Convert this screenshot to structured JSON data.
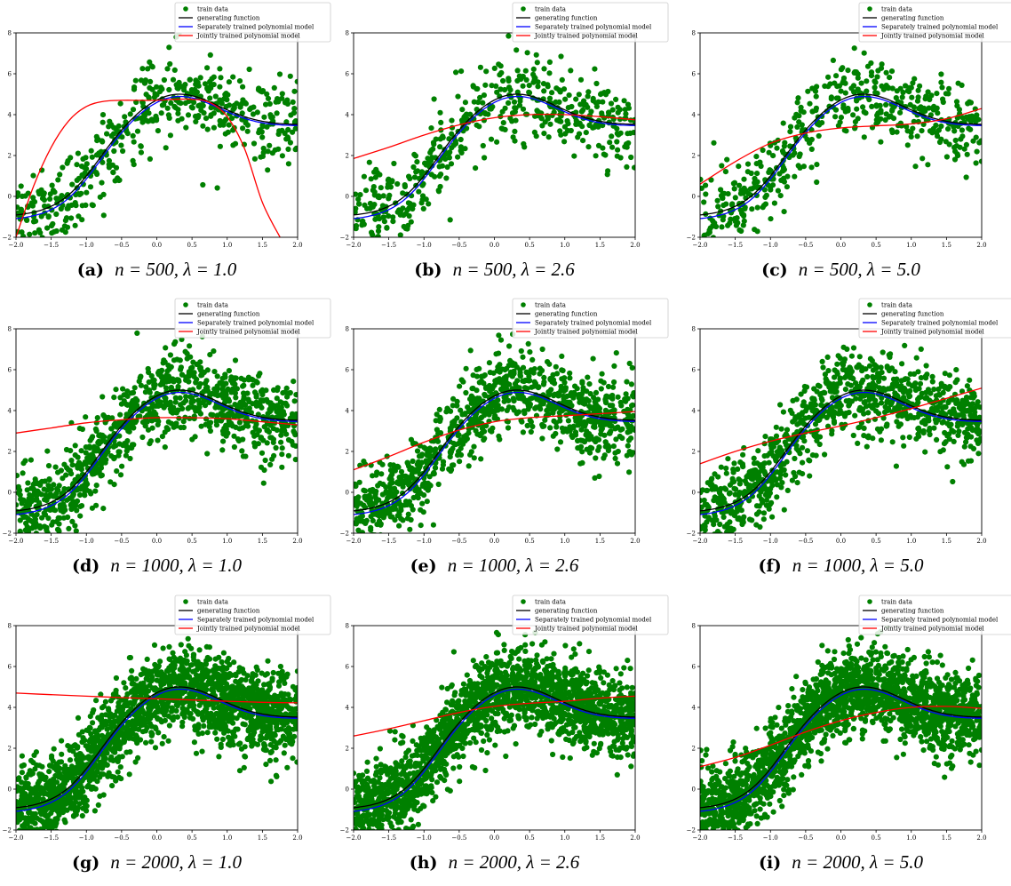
{
  "legend": {
    "entries": [
      {
        "key": "train",
        "label": "train data",
        "color": "#008000",
        "kind": "dot"
      },
      {
        "key": "gen",
        "label": "generating function",
        "color": "#000000",
        "kind": "line"
      },
      {
        "key": "sep",
        "label": "Separately trained polynomial model",
        "color": "#0000ff",
        "kind": "line"
      },
      {
        "key": "joint",
        "label": "Jointly trained polynomial model",
        "color": "#ff0000",
        "kind": "line"
      }
    ],
    "placement": "top-right"
  },
  "axes": {
    "xlim": [
      -2.0,
      2.0
    ],
    "ylim": [
      -2,
      8
    ],
    "xticks": [
      "−2.0",
      "−1.5",
      "−1.0",
      "−0.5",
      "0.0",
      "0.5",
      "1.0",
      "1.5",
      "2.0"
    ],
    "yticks": [
      "−2",
      "0",
      "2",
      "4",
      "6",
      "8"
    ],
    "grid": false
  },
  "chart_data": [
    {
      "type": "scatter",
      "caption_label": "(a)",
      "caption_math": "n = 500, λ = 1.0",
      "n": 500,
      "lambda": 1.0,
      "series": [
        {
          "key": "train",
          "approx_points": 500
        },
        {
          "key": "gen"
        },
        {
          "key": "sep"
        },
        {
          "key": "joint",
          "x": [
            -2.0,
            -1.75,
            -1.5,
            -1.25,
            -1.0,
            -0.75,
            -0.5,
            -0.25,
            0.0,
            0.25,
            0.5,
            0.75,
            1.0,
            1.25,
            1.5,
            1.75
          ],
          "y": [
            -2.0,
            0.5,
            2.4,
            3.7,
            4.4,
            4.65,
            4.7,
            4.7,
            4.7,
            4.75,
            4.75,
            4.6,
            3.9,
            2.3,
            -0.3,
            -2.0
          ]
        }
      ]
    },
    {
      "type": "scatter",
      "caption_label": "(b)",
      "caption_math": "n = 500, λ = 2.6",
      "n": 500,
      "lambda": 2.6,
      "series": [
        {
          "key": "train",
          "approx_points": 500
        },
        {
          "key": "gen"
        },
        {
          "key": "sep"
        },
        {
          "key": "joint",
          "x": [
            -2.0,
            -1.5,
            -1.0,
            -0.5,
            0.0,
            0.5,
            1.0,
            1.5,
            2.0
          ],
          "y": [
            1.85,
            2.4,
            3.0,
            3.5,
            3.85,
            4.0,
            4.0,
            3.9,
            3.75
          ]
        }
      ]
    },
    {
      "type": "scatter",
      "caption_label": "(c)",
      "caption_math": "n = 500, λ = 5.0",
      "n": 500,
      "lambda": 5.0,
      "series": [
        {
          "key": "train",
          "approx_points": 500
        },
        {
          "key": "gen"
        },
        {
          "key": "sep"
        },
        {
          "key": "joint",
          "x": [
            -2.0,
            -1.5,
            -1.0,
            -0.5,
            0.0,
            0.5,
            1.0,
            1.5,
            2.0
          ],
          "y": [
            0.6,
            1.7,
            2.6,
            3.1,
            3.35,
            3.45,
            3.55,
            3.8,
            4.3
          ]
        }
      ]
    },
    {
      "type": "scatter",
      "caption_label": "(d)",
      "caption_math": "n = 1000, λ = 1.0",
      "n": 1000,
      "lambda": 1.0,
      "series": [
        {
          "key": "train",
          "approx_points": 1000
        },
        {
          "key": "gen"
        },
        {
          "key": "sep"
        },
        {
          "key": "joint",
          "x": [
            -2.0,
            -1.5,
            -1.0,
            -0.5,
            0.0,
            0.5,
            1.0,
            1.5,
            2.0
          ],
          "y": [
            2.9,
            3.15,
            3.4,
            3.55,
            3.65,
            3.65,
            3.6,
            3.45,
            3.3
          ]
        }
      ]
    },
    {
      "type": "scatter",
      "caption_label": "(e)",
      "caption_math": "n = 1000, λ = 2.6",
      "n": 1000,
      "lambda": 2.6,
      "series": [
        {
          "key": "train",
          "approx_points": 1000
        },
        {
          "key": "gen"
        },
        {
          "key": "sep"
        },
        {
          "key": "joint",
          "x": [
            -2.0,
            -1.5,
            -1.0,
            -0.5,
            0.0,
            0.5,
            1.0,
            1.5,
            2.0
          ],
          "y": [
            1.1,
            1.75,
            2.45,
            3.05,
            3.45,
            3.65,
            3.75,
            3.85,
            3.95
          ]
        }
      ]
    },
    {
      "type": "scatter",
      "caption_label": "(f)",
      "caption_math": "n = 1000, λ = 5.0",
      "n": 1000,
      "lambda": 5.0,
      "series": [
        {
          "key": "train",
          "approx_points": 1000
        },
        {
          "key": "gen"
        },
        {
          "key": "sep"
        },
        {
          "key": "joint",
          "x": [
            -2.0,
            -1.5,
            -1.0,
            -0.5,
            0.0,
            0.5,
            1.0,
            1.5,
            2.0
          ],
          "y": [
            1.4,
            2.0,
            2.5,
            2.9,
            3.25,
            3.65,
            4.1,
            4.6,
            5.1
          ]
        }
      ]
    },
    {
      "type": "scatter",
      "caption_label": "(g)",
      "caption_math": "n = 2000, λ = 1.0",
      "n": 2000,
      "lambda": 1.0,
      "series": [
        {
          "key": "train",
          "approx_points": 2000
        },
        {
          "key": "gen"
        },
        {
          "key": "sep"
        },
        {
          "key": "joint",
          "x": [
            -2.0,
            -1.5,
            -1.0,
            -0.5,
            0.0,
            0.5,
            1.0,
            1.5,
            2.0
          ],
          "y": [
            4.7,
            4.62,
            4.55,
            4.48,
            4.42,
            4.36,
            4.3,
            4.25,
            4.22
          ]
        }
      ]
    },
    {
      "type": "scatter",
      "caption_label": "(h)",
      "caption_math": "n = 2000, λ = 2.6",
      "n": 2000,
      "lambda": 2.6,
      "series": [
        {
          "key": "train",
          "approx_points": 2000
        },
        {
          "key": "gen"
        },
        {
          "key": "sep"
        },
        {
          "key": "joint",
          "x": [
            -2.0,
            -1.5,
            -1.0,
            -0.5,
            0.0,
            0.5,
            1.0,
            1.5,
            2.0
          ],
          "y": [
            2.6,
            2.95,
            3.35,
            3.75,
            4.05,
            4.2,
            4.3,
            4.45,
            4.55
          ]
        }
      ]
    },
    {
      "type": "scatter",
      "caption_label": "(i)",
      "caption_math": "n = 2000, λ = 5.0",
      "n": 2000,
      "lambda": 5.0,
      "series": [
        {
          "key": "train",
          "approx_points": 2000
        },
        {
          "key": "gen"
        },
        {
          "key": "sep"
        },
        {
          "key": "joint",
          "x": [
            -2.0,
            -1.5,
            -1.0,
            -0.5,
            0.0,
            0.5,
            1.0,
            1.5,
            2.0
          ],
          "y": [
            1.1,
            1.55,
            2.15,
            2.8,
            3.35,
            3.75,
            4.0,
            4.05,
            3.95
          ]
        }
      ]
    }
  ]
}
